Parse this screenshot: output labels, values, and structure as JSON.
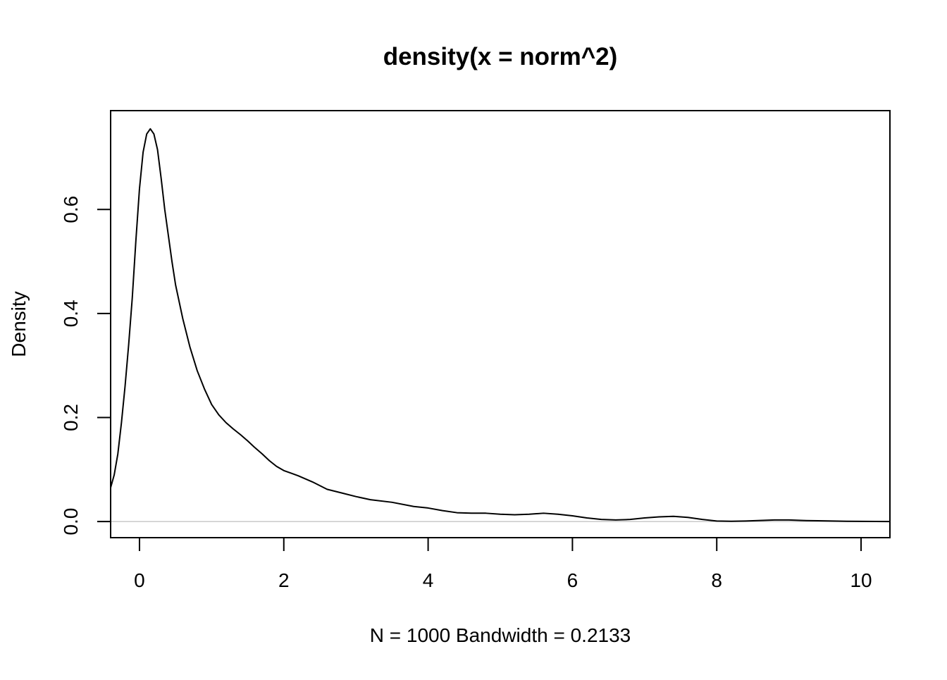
{
  "chart_data": {
    "type": "line",
    "title": "density(x = norm^2)",
    "xlabel": "N = 1000   Bandwidth = 0.2133",
    "ylabel": "Density",
    "xlim": [
      -0.4,
      10.4
    ],
    "ylim": [
      -0.031,
      0.79
    ],
    "grid": false,
    "legend": "none",
    "colors": {
      "line": "#000000",
      "baseline": "#bebebe",
      "frame": "#000000"
    },
    "x_ticks": [
      {
        "value": 0,
        "label": "0"
      },
      {
        "value": 2,
        "label": "2"
      },
      {
        "value": 4,
        "label": "4"
      },
      {
        "value": 6,
        "label": "6"
      },
      {
        "value": 8,
        "label": "8"
      },
      {
        "value": 10,
        "label": "10"
      }
    ],
    "y_ticks": [
      {
        "value": 0.0,
        "label": "0.0"
      },
      {
        "value": 0.2,
        "label": "0.2"
      },
      {
        "value": 0.4,
        "label": "0.4"
      },
      {
        "value": 0.6,
        "label": "0.6"
      }
    ],
    "series": [
      {
        "x": [
          -0.4,
          -0.35,
          -0.3,
          -0.25,
          -0.2,
          -0.15,
          -0.1,
          -0.05,
          0.0,
          0.05,
          0.1,
          0.15,
          0.2,
          0.25,
          0.3,
          0.35,
          0.4,
          0.45,
          0.5,
          0.6,
          0.7,
          0.8,
          0.9,
          1.0,
          1.1,
          1.2,
          1.3,
          1.4,
          1.5,
          1.6,
          1.7,
          1.8,
          1.9,
          2.0,
          2.1,
          2.2,
          2.4,
          2.6,
          2.8,
          3.0,
          3.2,
          3.5,
          3.8,
          4.0,
          4.2,
          4.4,
          4.6,
          4.8,
          5.0,
          5.2,
          5.4,
          5.6,
          5.8,
          6.0,
          6.2,
          6.4,
          6.6,
          6.8,
          7.0,
          7.2,
          7.4,
          7.6,
          7.8,
          8.0,
          8.2,
          8.4,
          8.6,
          8.8,
          9.0,
          9.2,
          9.4,
          9.6,
          9.8,
          10.0,
          10.2,
          10.4
        ],
        "y": [
          0.065,
          0.09,
          0.13,
          0.19,
          0.26,
          0.34,
          0.43,
          0.54,
          0.64,
          0.71,
          0.745,
          0.755,
          0.745,
          0.715,
          0.66,
          0.6,
          0.55,
          0.5,
          0.455,
          0.39,
          0.335,
          0.29,
          0.255,
          0.225,
          0.205,
          0.19,
          0.178,
          0.167,
          0.155,
          0.142,
          0.13,
          0.117,
          0.106,
          0.098,
          0.093,
          0.088,
          0.076,
          0.062,
          0.055,
          0.048,
          0.042,
          0.037,
          0.029,
          0.026,
          0.021,
          0.017,
          0.016,
          0.016,
          0.014,
          0.013,
          0.014,
          0.016,
          0.014,
          0.011,
          0.007,
          0.004,
          0.003,
          0.004,
          0.007,
          0.009,
          0.01,
          0.008,
          0.004,
          0.001,
          0.0005,
          0.001,
          0.002,
          0.003,
          0.003,
          0.002,
          0.0015,
          0.001,
          0.0005,
          0.0003,
          0.0001,
          0.0
        ]
      }
    ]
  }
}
